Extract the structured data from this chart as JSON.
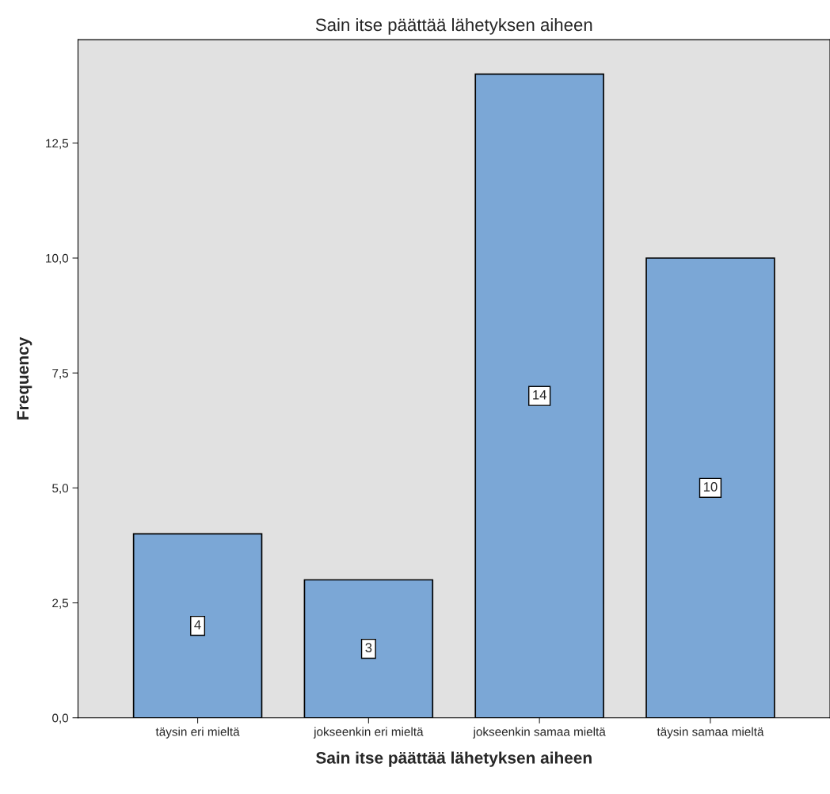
{
  "chart_data": {
    "type": "bar",
    "title": "Sain itse päättää lähetyksen aiheen",
    "xlabel": "Sain itse päättää lähetyksen aiheen",
    "ylabel": "Frequency",
    "categories": [
      "täysin eri mieltä",
      "jokseenkin eri mieltä",
      "jokseenkin samaa mieltä",
      "täysin samaa mieltä"
    ],
    "values": [
      4,
      3,
      14,
      10
    ],
    "color": "#7ba7d6",
    "data_labels": true,
    "ylim": [
      0,
      14.75
    ],
    "yticks": [
      {
        "value": 0,
        "label": "0,0"
      },
      {
        "value": 2.5,
        "label": "2,5"
      },
      {
        "value": 5,
        "label": "5,0"
      },
      {
        "value": 7.5,
        "label": "7,5"
      },
      {
        "value": 10,
        "label": "10,0"
      },
      {
        "value": 12.5,
        "label": "12,5"
      }
    ],
    "grid": false,
    "legend": false
  }
}
